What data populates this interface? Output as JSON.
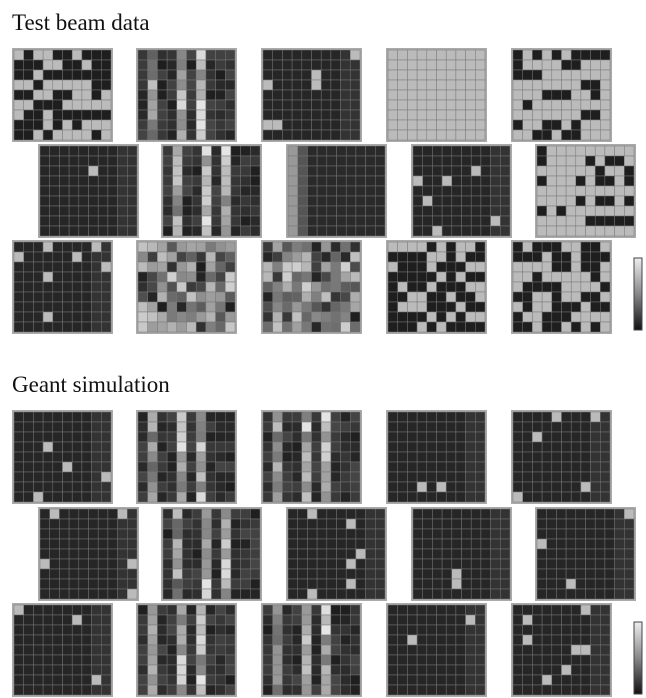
{
  "panels": [
    {
      "title": "Test beam data"
    },
    {
      "title": "Geant simulation"
    }
  ]
}
